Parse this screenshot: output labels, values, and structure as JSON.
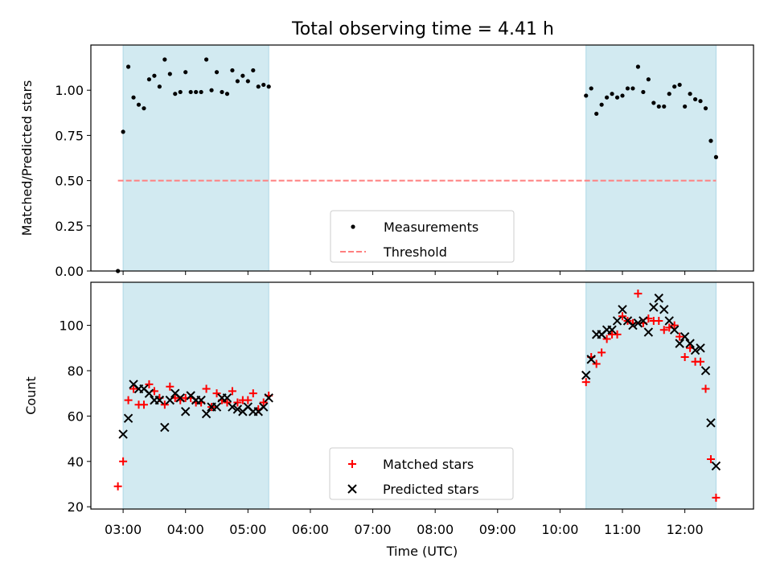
{
  "title": "Total observing time = 4.41 h",
  "chart_data": [
    {
      "type": "scatter",
      "ylabel": "Matched/Predicted stars",
      "ylim": [
        0,
        1.25
      ],
      "yticks": [
        0.0,
        0.25,
        0.5,
        0.75,
        1.0
      ],
      "ytick_labels": [
        "0.00",
        "0.25",
        "0.50",
        "0.75",
        "1.00"
      ],
      "xlim": [
        "02:29",
        "13:06"
      ],
      "shaded_intervals": [
        [
          "03:00",
          "05:20"
        ],
        [
          "10:25",
          "12:30"
        ]
      ],
      "shade_color": "#add8e6",
      "threshold": {
        "name": "Threshold",
        "y": 0.5,
        "x_range": [
          "02:55",
          "12:30"
        ],
        "color": "#ff7f7f",
        "style": "dashed"
      },
      "series": [
        {
          "name": "Measurements",
          "color": "#000000",
          "marker": "dot",
          "points": [
            [
              "02:55",
              0.0
            ],
            [
              "03:00",
              0.77
            ],
            [
              "03:05",
              1.13
            ],
            [
              "03:10",
              0.96
            ],
            [
              "03:15",
              0.92
            ],
            [
              "03:20",
              0.9
            ],
            [
              "03:25",
              1.06
            ],
            [
              "03:30",
              1.08
            ],
            [
              "03:35",
              1.02
            ],
            [
              "03:40",
              1.17
            ],
            [
              "03:45",
              1.09
            ],
            [
              "03:50",
              0.98
            ],
            [
              "03:55",
              0.99
            ],
            [
              "04:00",
              1.1
            ],
            [
              "04:05",
              0.99
            ],
            [
              "04:10",
              0.99
            ],
            [
              "04:15",
              0.99
            ],
            [
              "04:20",
              1.17
            ],
            [
              "04:25",
              1.0
            ],
            [
              "04:30",
              1.1
            ],
            [
              "04:35",
              0.99
            ],
            [
              "04:40",
              0.98
            ],
            [
              "04:45",
              1.11
            ],
            [
              "04:50",
              1.05
            ],
            [
              "04:55",
              1.08
            ],
            [
              "05:00",
              1.05
            ],
            [
              "05:05",
              1.11
            ],
            [
              "05:10",
              1.02
            ],
            [
              "05:15",
              1.03
            ],
            [
              "05:20",
              1.02
            ],
            [
              "10:25",
              0.97
            ],
            [
              "10:30",
              1.01
            ],
            [
              "10:35",
              0.87
            ],
            [
              "10:40",
              0.92
            ],
            [
              "10:45",
              0.96
            ],
            [
              "10:50",
              0.98
            ],
            [
              "10:55",
              0.96
            ],
            [
              "11:00",
              0.97
            ],
            [
              "11:05",
              1.01
            ],
            [
              "11:10",
              1.01
            ],
            [
              "11:15",
              1.13
            ],
            [
              "11:20",
              0.99
            ],
            [
              "11:25",
              1.06
            ],
            [
              "11:30",
              0.93
            ],
            [
              "11:35",
              0.91
            ],
            [
              "11:40",
              0.91
            ],
            [
              "11:45",
              0.98
            ],
            [
              "11:50",
              1.02
            ],
            [
              "11:55",
              1.03
            ],
            [
              "12:00",
              0.91
            ],
            [
              "12:05",
              0.98
            ],
            [
              "12:10",
              0.95
            ],
            [
              "12:15",
              0.94
            ],
            [
              "12:20",
              0.9
            ],
            [
              "12:25",
              0.72
            ],
            [
              "12:30",
              0.63
            ]
          ]
        }
      ],
      "legend": {
        "placement": "lower center",
        "entries": [
          "Measurements",
          "Threshold"
        ]
      },
      "grid": false
    },
    {
      "type": "scatter",
      "xlabel": "Time (UTC)",
      "ylabel": "Count",
      "ylim": [
        19,
        119
      ],
      "yticks": [
        20,
        40,
        60,
        80,
        100
      ],
      "xlim": [
        "02:29",
        "13:06"
      ],
      "xticks": [
        "03:00",
        "04:00",
        "05:00",
        "06:00",
        "07:00",
        "08:00",
        "09:00",
        "10:00",
        "11:00",
        "12:00"
      ],
      "shaded_intervals": [
        [
          "03:00",
          "05:20"
        ],
        [
          "10:25",
          "12:30"
        ]
      ],
      "shade_color": "#add8e6",
      "series": [
        {
          "name": "Matched stars",
          "color": "#ff0000",
          "marker": "plus",
          "points": [
            [
              "02:55",
              29
            ],
            [
              "03:00",
              40
            ],
            [
              "03:05",
              67
            ],
            [
              "03:10",
              72
            ],
            [
              "03:15",
              65
            ],
            [
              "03:20",
              65
            ],
            [
              "03:25",
              74
            ],
            [
              "03:30",
              71
            ],
            [
              "03:35",
              68
            ],
            [
              "03:40",
              65
            ],
            [
              "03:45",
              73
            ],
            [
              "03:50",
              68
            ],
            [
              "03:55",
              67
            ],
            [
              "04:00",
              68
            ],
            [
              "04:05",
              68
            ],
            [
              "04:10",
              66
            ],
            [
              "04:15",
              66
            ],
            [
              "04:20",
              72
            ],
            [
              "04:25",
              64
            ],
            [
              "04:30",
              70
            ],
            [
              "04:35",
              67
            ],
            [
              "04:40",
              66
            ],
            [
              "04:45",
              71
            ],
            [
              "04:50",
              66
            ],
            [
              "04:55",
              67
            ],
            [
              "05:00",
              67
            ],
            [
              "05:05",
              70
            ],
            [
              "05:10",
              63
            ],
            [
              "05:15",
              66
            ],
            [
              "05:20",
              69
            ],
            [
              "10:25",
              75
            ],
            [
              "10:30",
              86
            ],
            [
              "10:35",
              83
            ],
            [
              "10:40",
              88
            ],
            [
              "10:45",
              94
            ],
            [
              "10:50",
              96
            ],
            [
              "10:55",
              96
            ],
            [
              "11:00",
              104
            ],
            [
              "11:05",
              102
            ],
            [
              "11:10",
              101
            ],
            [
              "11:15",
              114
            ],
            [
              "11:20",
              101
            ],
            [
              "11:25",
              103
            ],
            [
              "11:30",
              102
            ],
            [
              "11:35",
              102
            ],
            [
              "11:40",
              98
            ],
            [
              "11:45",
              99
            ],
            [
              "11:50",
              100
            ],
            [
              "11:55",
              95
            ],
            [
              "12:00",
              86
            ],
            [
              "12:05",
              90
            ],
            [
              "12:10",
              84
            ],
            [
              "12:15",
              84
            ],
            [
              "12:20",
              72
            ],
            [
              "12:25",
              41
            ],
            [
              "12:30",
              24
            ]
          ]
        },
        {
          "name": "Predicted stars",
          "color": "#000000",
          "marker": "x",
          "points": [
            [
              "03:00",
              52
            ],
            [
              "03:05",
              59
            ],
            [
              "03:10",
              74
            ],
            [
              "03:15",
              72
            ],
            [
              "03:20",
              72
            ],
            [
              "03:25",
              70
            ],
            [
              "03:30",
              67
            ],
            [
              "03:35",
              67
            ],
            [
              "03:40",
              55
            ],
            [
              "03:45",
              67
            ],
            [
              "03:50",
              70
            ],
            [
              "03:55",
              68
            ],
            [
              "04:00",
              62
            ],
            [
              "04:05",
              69
            ],
            [
              "04:10",
              67
            ],
            [
              "04:15",
              67
            ],
            [
              "04:20",
              61
            ],
            [
              "04:25",
              64
            ],
            [
              "04:30",
              64
            ],
            [
              "04:35",
              68
            ],
            [
              "04:40",
              68
            ],
            [
              "04:45",
              64
            ],
            [
              "04:50",
              63
            ],
            [
              "04:55",
              62
            ],
            [
              "05:00",
              64
            ],
            [
              "05:05",
              62
            ],
            [
              "05:10",
              62
            ],
            [
              "05:15",
              64
            ],
            [
              "05:20",
              68
            ],
            [
              "10:25",
              78
            ],
            [
              "10:30",
              85
            ],
            [
              "10:35",
              96
            ],
            [
              "10:40",
              96
            ],
            [
              "10:45",
              98
            ],
            [
              "10:50",
              98
            ],
            [
              "10:55",
              102
            ],
            [
              "11:00",
              107
            ],
            [
              "11:05",
              102
            ],
            [
              "11:10",
              100
            ],
            [
              "11:15",
              101
            ],
            [
              "11:20",
              102
            ],
            [
              "11:25",
              97
            ],
            [
              "11:30",
              108
            ],
            [
              "11:35",
              112
            ],
            [
              "11:40",
              107
            ],
            [
              "11:45",
              102
            ],
            [
              "11:50",
              98
            ],
            [
              "11:55",
              92
            ],
            [
              "12:00",
              95
            ],
            [
              "12:05",
              92
            ],
            [
              "12:10",
              89
            ],
            [
              "12:15",
              90
            ],
            [
              "12:20",
              80
            ],
            [
              "12:25",
              57
            ],
            [
              "12:30",
              38
            ]
          ]
        }
      ],
      "legend": {
        "placement": "lower center",
        "entries": [
          "Matched stars",
          "Predicted stars"
        ]
      },
      "grid": false
    }
  ]
}
